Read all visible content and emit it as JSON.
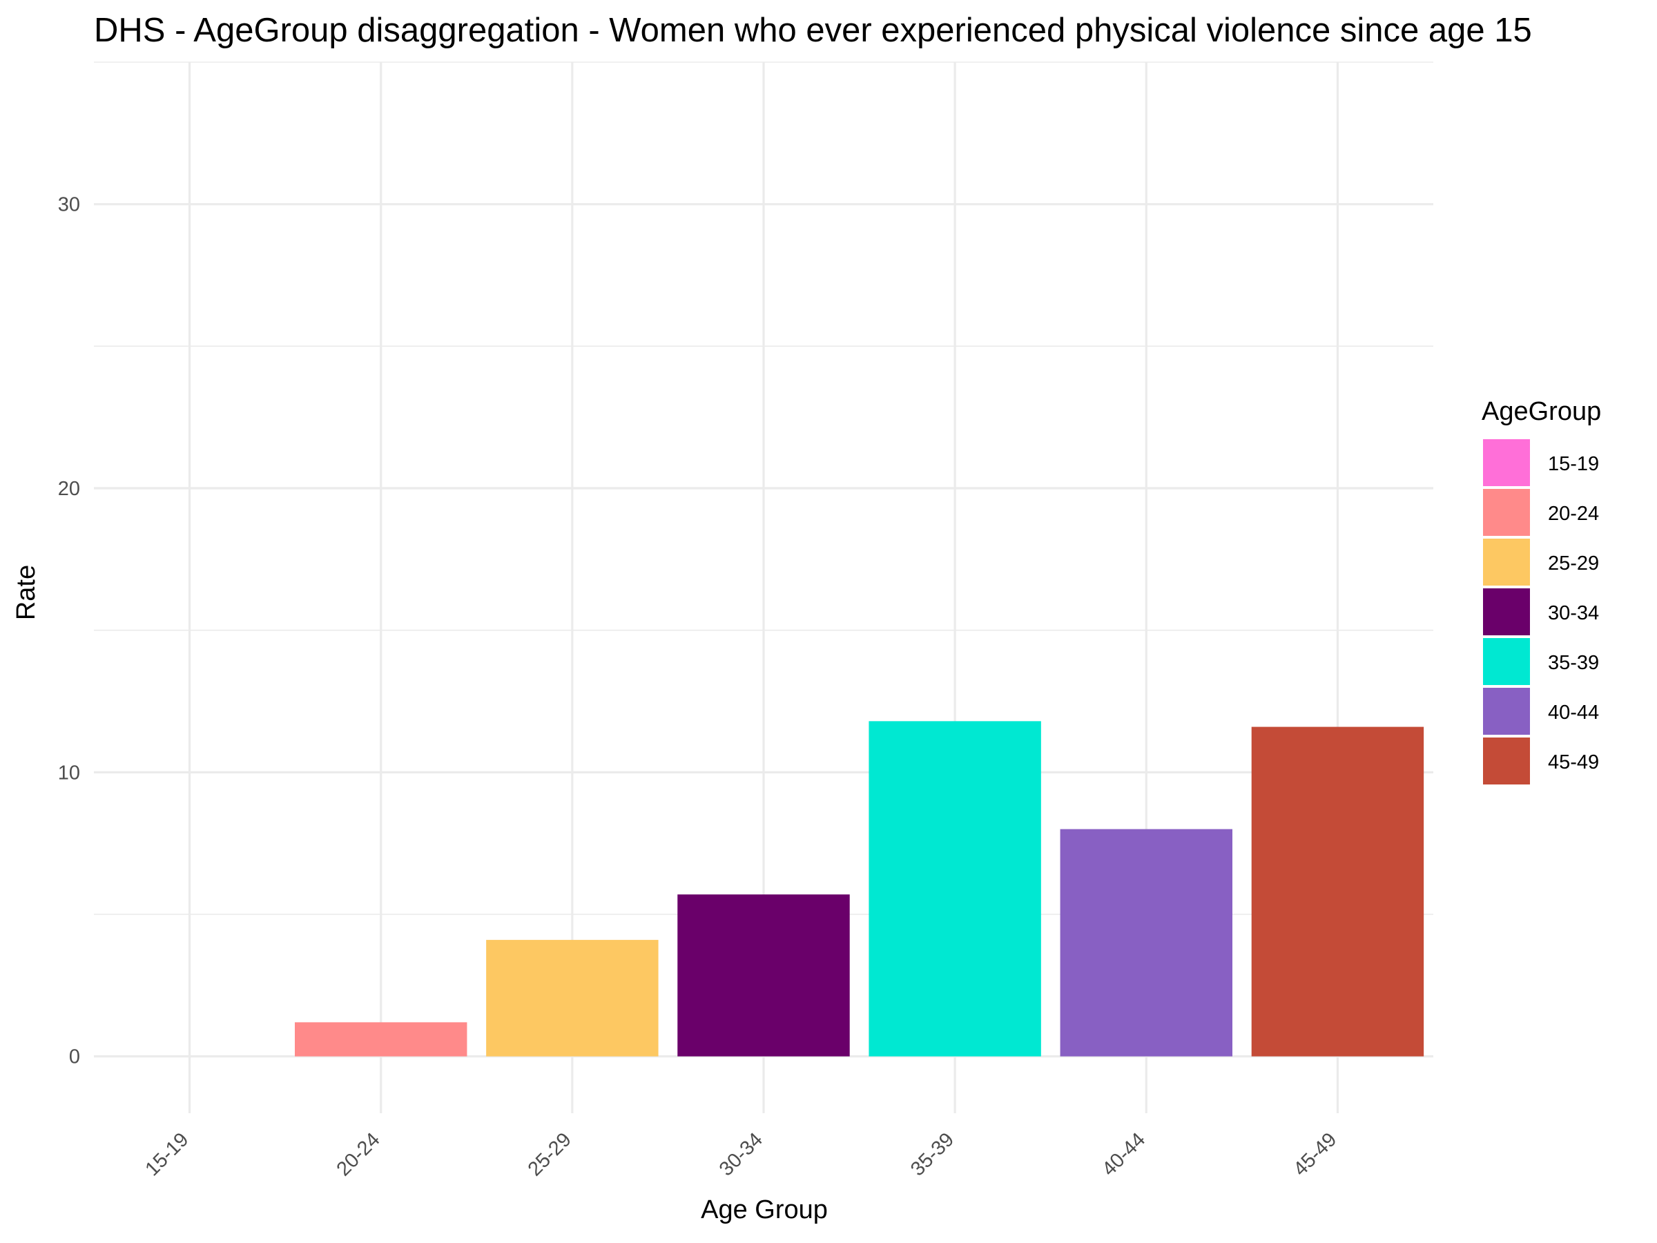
{
  "chart_data": {
    "type": "bar",
    "title": "DHS - AgeGroup disaggregation -  Women who ever experienced physical violence since age 15",
    "xlabel": "Age Group",
    "ylabel": "Rate",
    "categories": [
      "15-19",
      "20-24",
      "25-29",
      "30-34",
      "35-39",
      "40-44",
      "45-49"
    ],
    "values": [
      0,
      1.2,
      4.1,
      5.7,
      11.8,
      8.0,
      11.6
    ],
    "colors": [
      "#FF6FD8",
      "#FF8A8A",
      "#FDC862",
      "#6A006A",
      "#00E8D2",
      "#8860C3",
      "#C44B37"
    ],
    "ylim": [
      -2,
      35
    ],
    "yticks": [
      "0",
      "10",
      "20",
      "30"
    ],
    "grid": true,
    "legend": {
      "title": "AgeGroup",
      "position": "right",
      "entries": [
        "15-19",
        "20-24",
        "25-29",
        "30-34",
        "35-39",
        "40-44",
        "45-49"
      ]
    }
  }
}
